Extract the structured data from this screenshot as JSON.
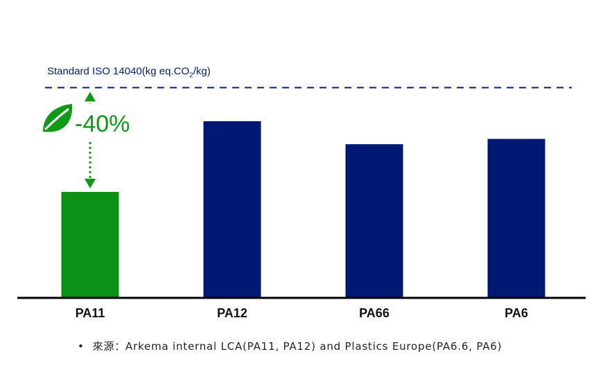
{
  "chart_data": {
    "type": "bar",
    "categories": [
      "PA11",
      "PA12",
      "PA66",
      "PA6"
    ],
    "values": [
      60,
      100,
      87,
      90
    ],
    "bar_colors": [
      "#0b9216",
      "#001a73",
      "#001a73",
      "#001a73"
    ],
    "ylim": [
      0,
      100
    ],
    "reference_line": {
      "value": 119,
      "label_prefix": "Standard ISO 14040(kg eq.CO",
      "label_sub": "2",
      "label_suffix": "/kg)",
      "color": "#001a80",
      "style": "dashed"
    },
    "annotation": {
      "text": "-40%",
      "color": "#0e9a16",
      "icon": "leaf-icon",
      "from": "reference_line",
      "to_category": "PA11"
    }
  },
  "source_note": {
    "bullet": "•",
    "text": "來源：Arkema internal LCA(PA11, PA12) and Plastics Europe(PA6.6, PA6)"
  }
}
